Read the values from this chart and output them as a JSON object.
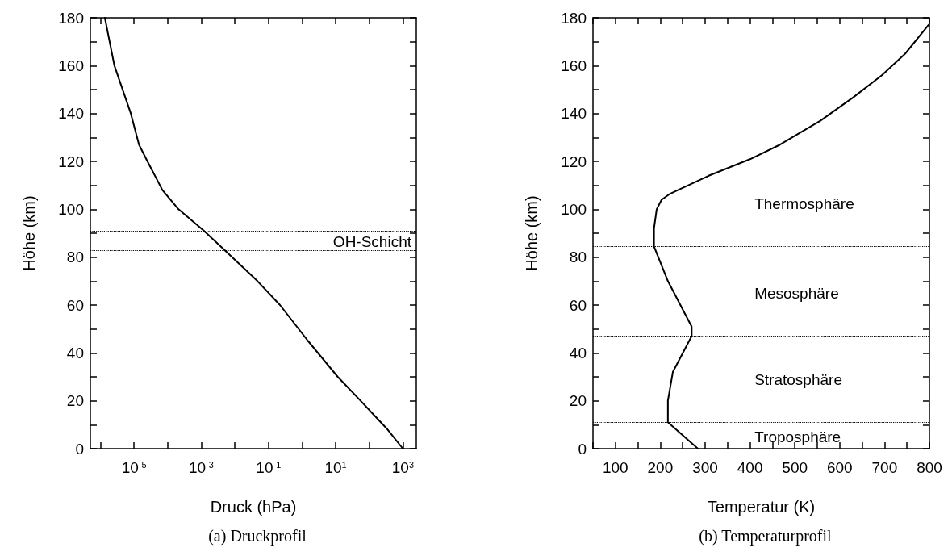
{
  "chart_data": [
    {
      "type": "line",
      "title": "(a) Druckprofil",
      "xlabel": "Druck (hPa)",
      "ylabel": "Höhe (km)",
      "log": "x",
      "grid": false,
      "marker": "none",
      "line_style": "solid",
      "xlim": [
        5e-07,
        2500
      ],
      "xticks": [
        {
          "value": 1e-06,
          "label": null
        },
        {
          "value": 1e-05,
          "label": "10$^{-5}$"
        },
        {
          "value": 0.0001,
          "label": null
        },
        {
          "value": 0.001,
          "label": "10$^{-3}$"
        },
        {
          "value": 0.01,
          "label": null
        },
        {
          "value": 0.1,
          "label": "10$^{-1}$"
        },
        {
          "value": 1,
          "label": null
        },
        {
          "value": 10,
          "label": "10$^{1}$"
        },
        {
          "value": 100,
          "label": null
        },
        {
          "value": 1000,
          "label": "10$^{3}$"
        }
      ],
      "ylim": [
        0,
        180
      ],
      "yticks": [
        0,
        {
          "value": 10,
          "label": null
        },
        20,
        {
          "value": 30,
          "label": null
        },
        40,
        {
          "value": 50,
          "label": null
        },
        60,
        {
          "value": 70,
          "label": null
        },
        80,
        {
          "value": 90,
          "label": null
        },
        100,
        {
          "value": 110,
          "label": null
        },
        120,
        {
          "value": 130,
          "label": null
        },
        140,
        {
          "value": 150,
          "label": null
        },
        160,
        {
          "value": 170,
          "label": null
        },
        180
      ],
      "series": [
        {
          "color": "#000000",
          "x": [
            1.35e-06,
            2.6e-06,
            8e-06,
            1.4e-05,
            2.5e-05,
            7e-05,
            0.00021,
            0.0012,
            0.0049,
            0.047,
            0.22,
            1.5,
            11.5,
            55,
            350,
            1000
          ],
          "values": [
            180,
            160,
            140,
            127,
            120,
            108,
            100,
            91,
            83,
            70,
            60,
            45,
            30,
            20,
            8,
            0
          ]
        }
      ],
      "ref_lines": [
        {
          "axis": "y",
          "value": 91,
          "color": "#000000",
          "line_style": "dotted"
        },
        {
          "axis": "y",
          "value": 83,
          "color": "#000000",
          "line_style": "dotted"
        }
      ],
      "annotations": [
        "OH-Schicht"
      ]
    },
    {
      "type": "line",
      "title": "(b) Temperaturprofil",
      "xlabel": "Temperatur (K)",
      "ylabel": "Höhe (km)",
      "grid": false,
      "marker": "none",
      "line_style": "solid",
      "xlim": [
        50,
        800
      ],
      "xticks": [
        {
          "value": 50,
          "label": null
        },
        100,
        {
          "value": 150,
          "label": null
        },
        200,
        {
          "value": 250,
          "label": null
        },
        300,
        {
          "value": 350,
          "label": null
        },
        400,
        {
          "value": 450,
          "label": null
        },
        500,
        {
          "value": 550,
          "label": null
        },
        600,
        {
          "value": 650,
          "label": null
        },
        700,
        {
          "value": 750,
          "label": null
        },
        800
      ],
      "ylim": [
        0,
        180
      ],
      "yticks": [
        0,
        {
          "value": 10,
          "label": null
        },
        20,
        {
          "value": 30,
          "label": null
        },
        40,
        {
          "value": 50,
          "label": null
        },
        60,
        {
          "value": 70,
          "label": null
        },
        80,
        {
          "value": 90,
          "label": null
        },
        100,
        {
          "value": 110,
          "label": null
        },
        120,
        {
          "value": 130,
          "label": null
        },
        140,
        {
          "value": 150,
          "label": null
        },
        160,
        {
          "value": 170,
          "label": null
        },
        180
      ],
      "series": [
        {
          "color": "#000000",
          "x": [
            284,
            217,
            217,
            228,
            270,
            270,
            217,
            186,
            186,
            192,
            203,
            222,
            239,
            308,
            401,
            467,
            557,
            632,
            694,
            746,
            798
          ],
          "values": [
            0,
            11,
            20,
            32,
            47,
            51,
            70,
            84.5,
            92,
            100,
            104,
            106.5,
            108,
            114,
            121,
            127,
            137,
            147,
            156,
            165,
            177
          ]
        }
      ],
      "ref_lines": [
        {
          "axis": "y",
          "value": 84.5,
          "color": "#000000",
          "line_style": "dotted"
        },
        {
          "axis": "y",
          "value": 47,
          "color": "#000000",
          "line_style": "dotted"
        },
        {
          "axis": "y",
          "value": 11,
          "color": "#000000",
          "line_style": "dotted"
        }
      ],
      "annotations": [
        "Thermosphäre",
        "Mesosphäre",
        "Stratosphäre",
        "Troposphäre"
      ]
    }
  ]
}
